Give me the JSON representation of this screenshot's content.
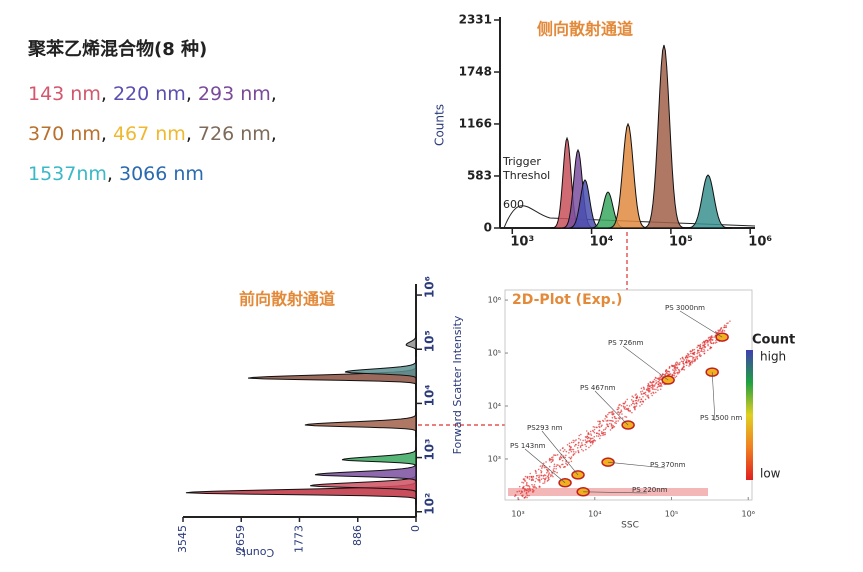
{
  "title": "聚苯乙烯混合物(8 种)",
  "legend_lines": [
    [
      {
        "text": "143 nm",
        "color": "#d4566c"
      },
      {
        "text": ", "
      },
      {
        "text": "220 nm",
        "color": "#5a4fb0"
      },
      {
        "text": ", "
      },
      {
        "text": "293 nm",
        "color": "#7a4a9a"
      },
      {
        "text": ","
      }
    ],
    [
      {
        "text": "370 nm",
        "color": "#b8702e"
      },
      {
        "text": ", "
      },
      {
        "text": "467 nm",
        "color": "#f0b830"
      },
      {
        "text": ", "
      },
      {
        "text": "726 nm",
        "color": "#7d6a5a"
      },
      {
        "text": ","
      }
    ],
    [
      {
        "text": "1537nm",
        "color": "#3ab8c8"
      },
      {
        "text": ", "
      },
      {
        "text": "3066 nm",
        "color": "#2a6ab0"
      }
    ]
  ],
  "chart_data": [
    {
      "type": "peaks",
      "title": "侧向散射通道",
      "ylabel": "Counts",
      "annotation": "Trigger\nThreshol",
      "annotation_value": "600",
      "log_x": true,
      "xlim": [
        700,
        1150000
      ],
      "ylim": [
        0,
        2331
      ],
      "xticks": [
        {
          "value": 1000,
          "label": "10³"
        },
        {
          "value": 10000,
          "label": "10⁴"
        },
        {
          "value": 100000,
          "label": "10⁵"
        },
        {
          "value": 1000000,
          "label": "10⁶"
        }
      ],
      "yticks": [
        0,
        583,
        1166,
        1748,
        2331
      ],
      "peaks": {
        "x": [
          4900,
          6740,
          8260,
          16100,
          28800,
          81800,
          294000
        ],
        "values": [
          1008,
          874,
          538,
          403,
          1166,
          2051,
          594
        ],
        "colors": [
          "#c8505a",
          "#7a4fa0",
          "#4a4fb0",
          "#3aa860",
          "#e08a40",
          "#a0604a",
          "#3a9090"
        ]
      }
    },
    {
      "type": "peaks-horizontal",
      "title": "前向散射通道",
      "ylabel": "Forward Scatter Intensity",
      "xlabel": "Counts",
      "log_y": true,
      "ylim": [
        80,
        1600000
      ],
      "xlim": [
        0,
        3545
      ],
      "yticks": [
        {
          "value": 100,
          "label": "10²"
        },
        {
          "value": 1000,
          "label": "10³"
        },
        {
          "value": 10000,
          "label": "10⁴"
        },
        {
          "value": 100000,
          "label": "10⁵"
        },
        {
          "value": 1000000,
          "label": "10⁶"
        }
      ],
      "xticks": [
        0,
        886,
        1773,
        2659,
        3545
      ],
      "peaks": {
        "y": [
          224,
          302,
          481,
          911,
          3990,
          29300,
          38000,
          120000
        ],
        "values": [
          3500,
          1610,
          1536,
          1125,
          1690,
          2555,
          1080,
          150
        ],
        "colors": [
          "#c03040",
          "#d05060",
          "#7a4fa0",
          "#3aa860",
          "#a0604a",
          "#8a5040",
          "#5a9090",
          "#909090"
        ]
      }
    },
    {
      "type": "scatter",
      "title": "2D-Plot (Exp.)",
      "xlabel": "SSC",
      "log_x": true,
      "log_y": true,
      "xlim": [
        676,
        1120000
      ],
      "ylim": [
        168,
        1550000
      ],
      "xticks": [
        {
          "value": 1000,
          "label": "10³"
        },
        {
          "value": 10000,
          "label": "10⁴"
        },
        {
          "value": 100000,
          "label": "10⁵"
        },
        {
          "value": 1000000,
          "label": "10⁶"
        }
      ],
      "yticks": [
        {
          "value": 1000,
          "label": "10³"
        },
        {
          "value": 10000,
          "label": "10⁴"
        },
        {
          "value": 100000,
          "label": "10⁵"
        },
        {
          "value": 1000000,
          "label": "10⁶"
        }
      ],
      "clusters": {
        "labels": [
          "PS 3000nm",
          "PS 726nm",
          "PS 1500 nm",
          "PS 467nm",
          "PS 370nm",
          "PS293 nm",
          "PS 143nm",
          "PS 220nm"
        ],
        "x": [
          457000,
          90400,
          339000,
          27200,
          14900,
          6050,
          4100,
          7060
        ],
        "y": [
          200000,
          30900,
          43600,
          4370,
          870,
          500,
          355,
          240
        ]
      },
      "colorbar": {
        "title": "Count",
        "high": "high",
        "low": "low"
      }
    }
  ]
}
